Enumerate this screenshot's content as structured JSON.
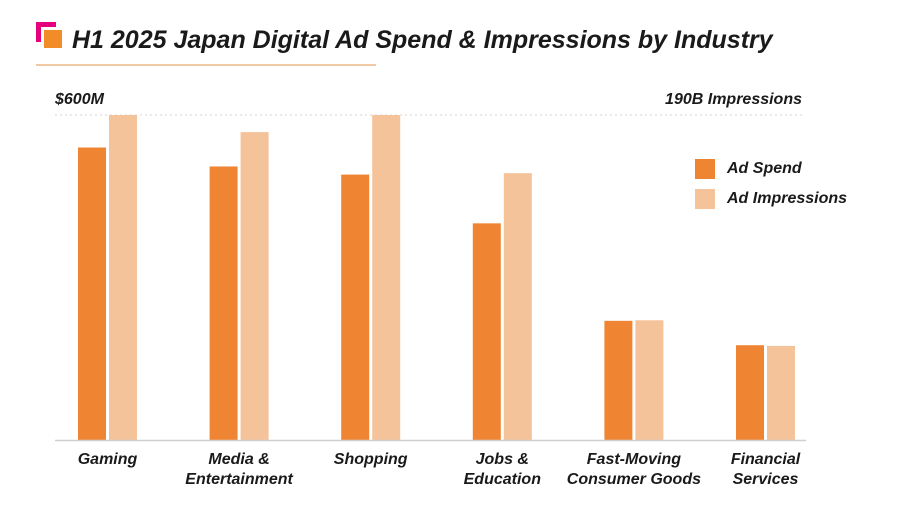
{
  "colors": {
    "spend": "#ef8532",
    "impressions": "#f5c39a",
    "axis": "#cfcfcf"
  },
  "chart_data": {
    "type": "bar",
    "title": "H1 2025 Japan Digital Ad Spend & Impressions by Industry",
    "left_axis_label": "$600M",
    "right_axis_label": "190B Impressions",
    "left_axis_max_millions_usd": 600,
    "right_axis_max_billions_impressions": 190,
    "categories": [
      "Gaming",
      "Media & Entertainment",
      "Shopping",
      "Jobs & Education",
      "Fast-Moving Consumer Goods",
      "Financial Services"
    ],
    "category_lines": [
      [
        "Gaming"
      ],
      [
        "Media &",
        "Entertainment"
      ],
      [
        "Shopping"
      ],
      [
        "Jobs &",
        "Education"
      ],
      [
        "Fast-Moving",
        "Consumer Goods"
      ],
      [
        "Financial",
        "Services"
      ]
    ],
    "series": [
      {
        "name": "Ad Spend",
        "axis": "left",
        "values": [
          540,
          505,
          490,
          400,
          220,
          175
        ]
      },
      {
        "name": "Ad Impressions",
        "axis": "right",
        "values": [
          190,
          180,
          190,
          156,
          70,
          55
        ]
      }
    ],
    "legend": [
      "Ad Spend",
      "Ad Impressions"
    ],
    "legend_position": "top-right"
  }
}
